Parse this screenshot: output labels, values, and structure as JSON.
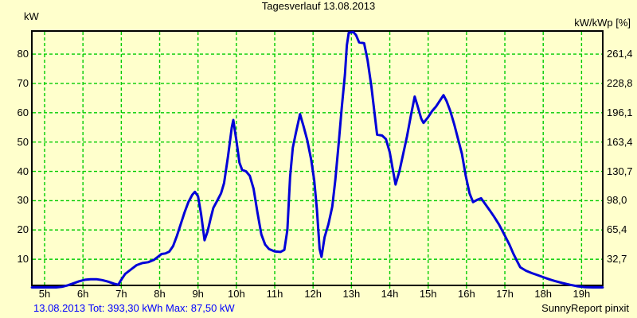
{
  "header": {
    "title": "Tagesverlauf 13.08.2013",
    "left_axis_unit": "kW",
    "right_axis_unit": "kW/kWp [%]"
  },
  "footer": {
    "summary": "13.08.2013 Tot: 393,30 kWh Max: 87,50 kW",
    "credit": "SunnyReport pinxit"
  },
  "colors": {
    "background": "#ffffcc",
    "grid": "#00cc00",
    "curve": "#0000d8",
    "frame": "#000000",
    "summary_text": "#0000ff",
    "text": "#000000"
  },
  "chart_data": {
    "type": "line",
    "title": "Tagesverlauf 13.08.2013",
    "ylabel_left": "kW",
    "ylabel_right": "kW/kWp [%]",
    "grid": true,
    "xlim_hours": [
      4.67,
      19.55
    ],
    "ylim_kw": [
      0,
      87.8
    ],
    "x_tick_hours": [
      5,
      6,
      7,
      8,
      9,
      10,
      11,
      12,
      13,
      14,
      15,
      16,
      17,
      18,
      19
    ],
    "x_tick_labels": [
      "5h",
      "6h",
      "7h",
      "8h",
      "9h",
      "10h",
      "11h",
      "12h",
      "13h",
      "14h",
      "15h",
      "16h",
      "17h",
      "18h",
      "19h"
    ],
    "y_ticks_left": [
      10,
      20,
      30,
      40,
      50,
      60,
      70,
      80
    ],
    "y_tick_labels_right": [
      "32,7",
      "65,4",
      "98,0",
      "130,7",
      "163,4",
      "196,1",
      "228,8",
      "261,4"
    ],
    "total_kwh": "393,30",
    "max_kw": "87,50",
    "date": "13.08.2013",
    "series": [
      {
        "name": "kW",
        "points": [
          [
            4.67,
            0.4
          ],
          [
            5.0,
            0.4
          ],
          [
            5.3,
            0.4
          ],
          [
            5.45,
            0.6
          ],
          [
            5.6,
            1.1
          ],
          [
            5.75,
            1.8
          ],
          [
            5.9,
            2.5
          ],
          [
            6.05,
            3.0
          ],
          [
            6.2,
            3.2
          ],
          [
            6.35,
            3.2
          ],
          [
            6.5,
            2.9
          ],
          [
            6.65,
            2.4
          ],
          [
            6.8,
            1.7
          ],
          [
            6.92,
            1.3
          ],
          [
            7.0,
            3.0
          ],
          [
            7.1,
            5.0
          ],
          [
            7.25,
            6.5
          ],
          [
            7.4,
            8.0
          ],
          [
            7.55,
            8.7
          ],
          [
            7.7,
            9.0
          ],
          [
            7.85,
            9.8
          ],
          [
            7.95,
            10.8
          ],
          [
            8.05,
            11.8
          ],
          [
            8.15,
            12.0
          ],
          [
            8.25,
            12.6
          ],
          [
            8.35,
            14.5
          ],
          [
            8.45,
            18.0
          ],
          [
            8.55,
            22.0
          ],
          [
            8.65,
            26.0
          ],
          [
            8.75,
            29.5
          ],
          [
            8.85,
            32.0
          ],
          [
            8.92,
            33.0
          ],
          [
            9.0,
            31.5
          ],
          [
            9.08,
            25.5
          ],
          [
            9.17,
            16.5
          ],
          [
            9.25,
            19.5
          ],
          [
            9.33,
            24.0
          ],
          [
            9.4,
            27.5
          ],
          [
            9.5,
            30.0
          ],
          [
            9.6,
            32.5
          ],
          [
            9.68,
            36.0
          ],
          [
            9.78,
            45.0
          ],
          [
            9.88,
            55.0
          ],
          [
            9.92,
            57.5
          ],
          [
            10.0,
            50.5
          ],
          [
            10.08,
            43.0
          ],
          [
            10.15,
            40.5
          ],
          [
            10.25,
            40.0
          ],
          [
            10.35,
            38.5
          ],
          [
            10.45,
            34.0
          ],
          [
            10.55,
            26.0
          ],
          [
            10.65,
            18.5
          ],
          [
            10.75,
            15.0
          ],
          [
            10.85,
            13.5
          ],
          [
            11.0,
            12.7
          ],
          [
            11.15,
            12.5
          ],
          [
            11.25,
            13.2
          ],
          [
            11.33,
            20.0
          ],
          [
            11.4,
            38.0
          ],
          [
            11.47,
            48.0
          ],
          [
            11.55,
            53.0
          ],
          [
            11.66,
            59.5
          ],
          [
            11.75,
            55.5
          ],
          [
            11.85,
            50.5
          ],
          [
            11.95,
            44.0
          ],
          [
            12.03,
            37.0
          ],
          [
            12.1,
            27.0
          ],
          [
            12.17,
            13.5
          ],
          [
            12.22,
            10.8
          ],
          [
            12.3,
            17.5
          ],
          [
            12.4,
            22.0
          ],
          [
            12.5,
            28.0
          ],
          [
            12.58,
            37.0
          ],
          [
            12.67,
            50.0
          ],
          [
            12.75,
            62.0
          ],
          [
            12.83,
            73.0
          ],
          [
            12.88,
            83.0
          ],
          [
            12.93,
            87.3
          ],
          [
            13.05,
            87.5
          ],
          [
            13.12,
            86.5
          ],
          [
            13.2,
            84.0
          ],
          [
            13.33,
            83.7
          ],
          [
            13.42,
            78.0
          ],
          [
            13.52,
            69.0
          ],
          [
            13.6,
            60.0
          ],
          [
            13.67,
            52.5
          ],
          [
            13.8,
            52.2
          ],
          [
            13.9,
            51.0
          ],
          [
            14.0,
            46.5
          ],
          [
            14.08,
            40.5
          ],
          [
            14.15,
            35.5
          ],
          [
            14.25,
            40.0
          ],
          [
            14.35,
            46.0
          ],
          [
            14.45,
            52.0
          ],
          [
            14.55,
            59.0
          ],
          [
            14.65,
            65.5
          ],
          [
            14.72,
            62.5
          ],
          [
            14.82,
            58.0
          ],
          [
            14.88,
            56.5
          ],
          [
            15.0,
            58.5
          ],
          [
            15.1,
            60.5
          ],
          [
            15.2,
            62.0
          ],
          [
            15.3,
            64.0
          ],
          [
            15.4,
            66.0
          ],
          [
            15.48,
            64.0
          ],
          [
            15.58,
            60.5
          ],
          [
            15.68,
            56.0
          ],
          [
            15.78,
            51.0
          ],
          [
            15.88,
            46.0
          ],
          [
            15.98,
            38.5
          ],
          [
            16.08,
            32.5
          ],
          [
            16.17,
            29.5
          ],
          [
            16.28,
            30.3
          ],
          [
            16.38,
            30.8
          ],
          [
            16.48,
            29.0
          ],
          [
            16.6,
            26.8
          ],
          [
            16.72,
            24.5
          ],
          [
            16.85,
            21.8
          ],
          [
            17.0,
            18.1
          ],
          [
            17.12,
            15.0
          ],
          [
            17.22,
            12.0
          ],
          [
            17.32,
            9.3
          ],
          [
            17.4,
            7.3
          ],
          [
            17.55,
            6.1
          ],
          [
            17.7,
            5.3
          ],
          [
            17.85,
            4.6
          ],
          [
            18.0,
            3.9
          ],
          [
            18.15,
            3.2
          ],
          [
            18.3,
            2.6
          ],
          [
            18.5,
            1.9
          ],
          [
            18.7,
            1.3
          ],
          [
            18.9,
            0.8
          ],
          [
            19.1,
            0.5
          ],
          [
            19.3,
            0.4
          ],
          [
            19.55,
            0.4
          ]
        ]
      }
    ]
  }
}
